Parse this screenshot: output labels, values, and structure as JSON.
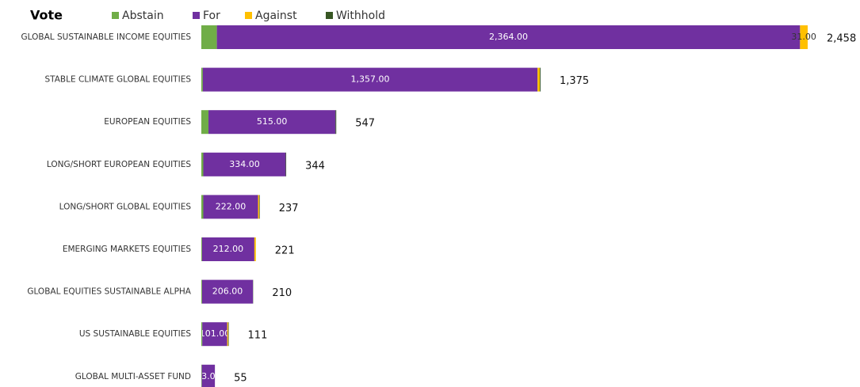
{
  "chart_data": {
    "type": "stacked-bar-horizontal",
    "legend_title": "Vote",
    "categories": [
      "GLOBAL SUSTAINABLE INCOME EQUITIES",
      "STABLE CLIMATE GLOBAL EQUITIES",
      "EUROPEAN EQUITIES",
      "LONG/SHORT EUROPEAN EQUITIES",
      "LONG/SHORT GLOBAL EQUITIES",
      "EMERGING MARKETS EQUITIES",
      "GLOBAL EQUITIES SUSTAINABLE ALPHA",
      "US SUSTAINABLE EQUITIES",
      "GLOBAL MULTI-ASSET FUND"
    ],
    "series": [
      {
        "name": "Abstain",
        "color": "#70ad47",
        "values": [
          63,
          6,
          29,
          8,
          8,
          3,
          3,
          4,
          2
        ]
      },
      {
        "name": "For",
        "color": "#7030a0",
        "values": [
          2364,
          1357,
          515,
          334,
          222,
          212,
          206,
          101,
          53
        ],
        "value_labels": [
          "2,364.00",
          "1,357.00",
          "515.00",
          "334.00",
          "222.00",
          "212.00",
          "206.00",
          "101.00",
          "53.00"
        ]
      },
      {
        "name": "Against",
        "color": "#ffc000",
        "values": [
          31,
          9,
          0,
          0,
          5,
          6,
          0,
          4,
          0
        ],
        "value_labels": [
          "31.00",
          null,
          null,
          null,
          null,
          null,
          null,
          null,
          null
        ]
      },
      {
        "name": "Withhold",
        "color": "#375623",
        "values": [
          0,
          3,
          3,
          2,
          2,
          0,
          1,
          2,
          0
        ]
      }
    ],
    "totals": [
      2458,
      1375,
      547,
      344,
      237,
      221,
      210,
      111,
      55
    ],
    "total_labels": [
      "2,458",
      "1,375",
      "547",
      "344",
      "237",
      "221",
      "210",
      "111",
      "55"
    ],
    "legend": "top"
  }
}
